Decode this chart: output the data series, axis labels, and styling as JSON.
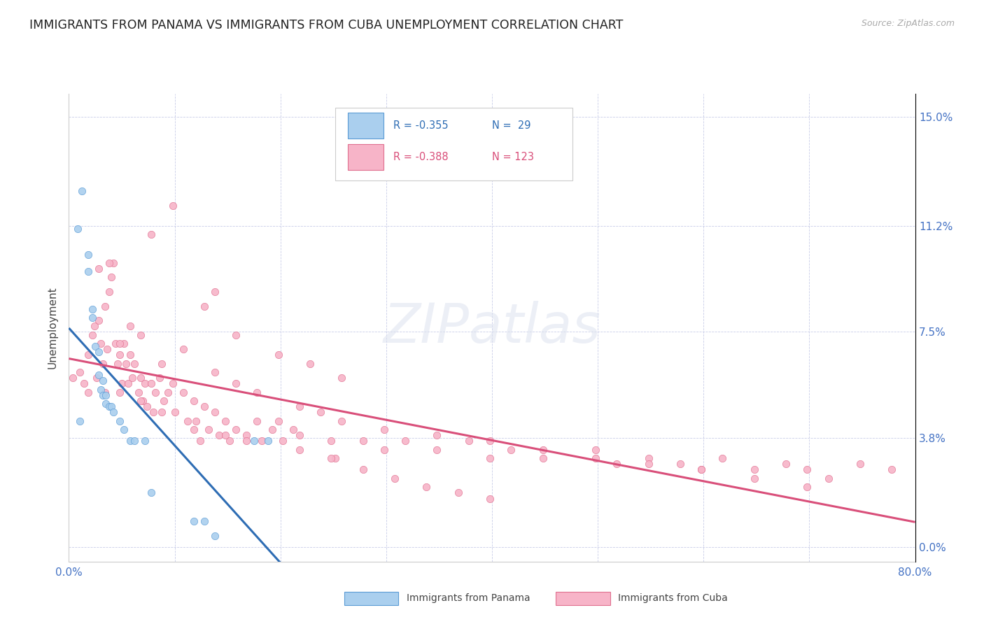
{
  "title": "IMMIGRANTS FROM PANAMA VS IMMIGRANTS FROM CUBA UNEMPLOYMENT CORRELATION CHART",
  "source": "Source: ZipAtlas.com",
  "ylabel": "Unemployment",
  "ytick_labels": [
    "0.0%",
    "3.8%",
    "7.5%",
    "11.2%",
    "15.0%"
  ],
  "ytick_values": [
    0.0,
    0.038,
    0.075,
    0.112,
    0.15
  ],
  "xlim": [
    0.0,
    0.8
  ],
  "ylim": [
    -0.005,
    0.158
  ],
  "panama_R": -0.355,
  "panama_N": 29,
  "cuba_R": -0.388,
  "cuba_N": 123,
  "panama_color": "#aacfee",
  "cuba_color": "#f7b4c8",
  "panama_edge_color": "#5b9bd5",
  "cuba_edge_color": "#e07090",
  "panama_line_color": "#2e6db4",
  "cuba_line_color": "#d94f7a",
  "legend_label_panama": "Immigrants from Panama",
  "legend_label_cuba": "Immigrants from Cuba",
  "watermark": "ZIPatlas",
  "background_color": "#ffffff",
  "grid_color": "#c8cce8",
  "title_fontsize": 12.5,
  "tick_color": "#4472c4",
  "panama_scatter_x": [
    0.008,
    0.012,
    0.018,
    0.022,
    0.022,
    0.025,
    0.028,
    0.028,
    0.03,
    0.032,
    0.032,
    0.035,
    0.035,
    0.038,
    0.04,
    0.042,
    0.048,
    0.052,
    0.058,
    0.062,
    0.072,
    0.078,
    0.118,
    0.128,
    0.138,
    0.175,
    0.188,
    0.018,
    0.01
  ],
  "panama_scatter_y": [
    0.111,
    0.124,
    0.102,
    0.083,
    0.08,
    0.07,
    0.068,
    0.06,
    0.055,
    0.058,
    0.053,
    0.053,
    0.05,
    0.049,
    0.049,
    0.047,
    0.044,
    0.041,
    0.037,
    0.037,
    0.037,
    0.019,
    0.009,
    0.009,
    0.004,
    0.037,
    0.037,
    0.096,
    0.044
  ],
  "cuba_scatter_x": [
    0.004,
    0.01,
    0.014,
    0.018,
    0.022,
    0.024,
    0.026,
    0.028,
    0.03,
    0.032,
    0.034,
    0.034,
    0.036,
    0.038,
    0.04,
    0.042,
    0.044,
    0.046,
    0.048,
    0.048,
    0.05,
    0.052,
    0.054,
    0.056,
    0.058,
    0.06,
    0.062,
    0.066,
    0.068,
    0.07,
    0.072,
    0.074,
    0.078,
    0.08,
    0.082,
    0.086,
    0.09,
    0.094,
    0.098,
    0.1,
    0.108,
    0.112,
    0.118,
    0.12,
    0.124,
    0.128,
    0.132,
    0.138,
    0.142,
    0.148,
    0.152,
    0.158,
    0.168,
    0.178,
    0.182,
    0.192,
    0.198,
    0.202,
    0.212,
    0.218,
    0.248,
    0.252,
    0.278,
    0.298,
    0.318,
    0.348,
    0.378,
    0.398,
    0.418,
    0.448,
    0.498,
    0.518,
    0.548,
    0.578,
    0.598,
    0.618,
    0.648,
    0.678,
    0.698,
    0.718,
    0.748,
    0.778,
    0.058,
    0.038,
    0.078,
    0.098,
    0.128,
    0.138,
    0.158,
    0.198,
    0.228,
    0.258,
    0.028,
    0.048,
    0.068,
    0.088,
    0.108,
    0.138,
    0.158,
    0.178,
    0.218,
    0.238,
    0.258,
    0.298,
    0.348,
    0.398,
    0.448,
    0.498,
    0.548,
    0.598,
    0.648,
    0.698,
    0.018,
    0.068,
    0.088,
    0.118,
    0.148,
    0.168,
    0.218,
    0.248,
    0.278,
    0.308,
    0.338,
    0.368,
    0.398
  ],
  "cuba_scatter_y": [
    0.059,
    0.061,
    0.057,
    0.067,
    0.074,
    0.077,
    0.059,
    0.079,
    0.071,
    0.064,
    0.054,
    0.084,
    0.069,
    0.089,
    0.094,
    0.099,
    0.071,
    0.064,
    0.054,
    0.067,
    0.057,
    0.071,
    0.064,
    0.057,
    0.067,
    0.059,
    0.064,
    0.054,
    0.059,
    0.051,
    0.057,
    0.049,
    0.057,
    0.047,
    0.054,
    0.059,
    0.051,
    0.054,
    0.057,
    0.047,
    0.054,
    0.044,
    0.051,
    0.044,
    0.037,
    0.049,
    0.041,
    0.047,
    0.039,
    0.044,
    0.037,
    0.041,
    0.039,
    0.044,
    0.037,
    0.041,
    0.044,
    0.037,
    0.041,
    0.039,
    0.037,
    0.031,
    0.037,
    0.034,
    0.037,
    0.034,
    0.037,
    0.031,
    0.034,
    0.031,
    0.034,
    0.029,
    0.031,
    0.029,
    0.027,
    0.031,
    0.027,
    0.029,
    0.027,
    0.024,
    0.029,
    0.027,
    0.077,
    0.099,
    0.109,
    0.119,
    0.084,
    0.089,
    0.074,
    0.067,
    0.064,
    0.059,
    0.097,
    0.071,
    0.074,
    0.064,
    0.069,
    0.061,
    0.057,
    0.054,
    0.049,
    0.047,
    0.044,
    0.041,
    0.039,
    0.037,
    0.034,
    0.031,
    0.029,
    0.027,
    0.024,
    0.021,
    0.054,
    0.051,
    0.047,
    0.041,
    0.039,
    0.037,
    0.034,
    0.031,
    0.027,
    0.024,
    0.021,
    0.019,
    0.017
  ]
}
